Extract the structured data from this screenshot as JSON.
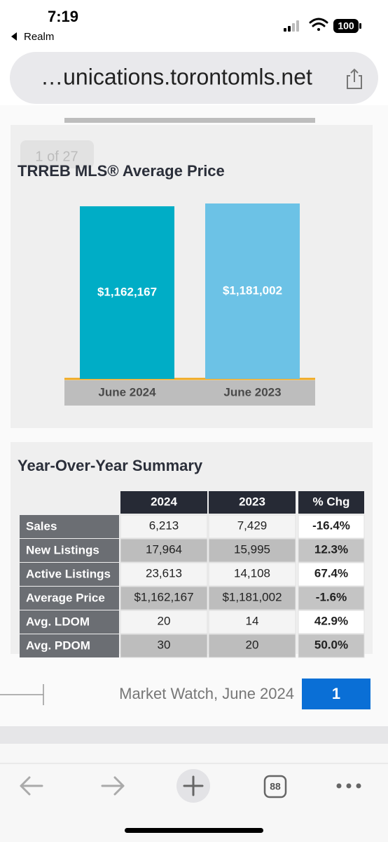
{
  "status_bar": {
    "time": "7:19",
    "back_app": "Realm",
    "battery": "100"
  },
  "browser": {
    "url": "…unications.torontomls.net",
    "tab_count": "88"
  },
  "page_badge": "1 of 27",
  "chart_data": {
    "type": "bar",
    "title": "TRREB MLS® Average Price",
    "categories": [
      "June 2024",
      "June 2023"
    ],
    "values": [
      1162167,
      1181002
    ],
    "value_labels": [
      "$1,162,167",
      "$1,181,002"
    ],
    "colors": [
      "#00adc6",
      "#6cc2e6"
    ]
  },
  "summary": {
    "title": "Year-Over-Year Summary",
    "headers": [
      "2024",
      "2023",
      "% Chg"
    ],
    "rows": [
      [
        "Sales",
        "6,213",
        "7,429",
        "-16.4%"
      ],
      [
        "New Listings",
        "17,964",
        "15,995",
        "12.3%"
      ],
      [
        "Active Listings",
        "23,613",
        "14,108",
        "67.4%"
      ],
      [
        "Average Price",
        "$1,162,167",
        "$1,181,002",
        "-1.6%"
      ],
      [
        "Avg. LDOM",
        "20",
        "14",
        "42.9%"
      ],
      [
        "Avg. PDOM",
        "30",
        "20",
        "50.0%"
      ]
    ]
  },
  "footer": {
    "text": "Market Watch, June 2024",
    "page_number": "1"
  }
}
